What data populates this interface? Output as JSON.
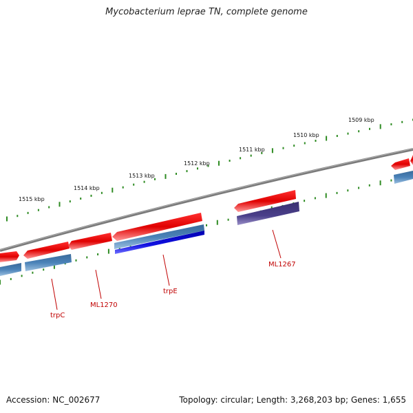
{
  "header": {
    "title": "Mycobacterium leprae TN, complete genome"
  },
  "footer": {
    "accession": "Accession: NC_002677",
    "summary": "Topology: circular; Length: 3,268,203 bp; Genes: 1,655"
  },
  "scale": {
    "ticks": [
      {
        "label": "1509 kbp"
      },
      {
        "label": "1510 kbp"
      },
      {
        "label": "1511 kbp"
      },
      {
        "label": "1512 kbp"
      },
      {
        "label": "1513 kbp"
      },
      {
        "label": "1514 kbp"
      },
      {
        "label": "1515 kbp"
      }
    ]
  },
  "genes": {
    "labels": [
      {
        "name": "ML1267"
      },
      {
        "name": "trpE"
      },
      {
        "name": "ML1270"
      },
      {
        "name": "trpC"
      }
    ]
  },
  "colors": {
    "backbone": "#808080",
    "forward_feature": "#e01010",
    "reverse_feature": "#4a7fb0",
    "trpE_feature": "#1010d0",
    "ML1267_feature": "#4a3f8a",
    "tick": "#2e8b22",
    "gene_label": "#c00000"
  }
}
